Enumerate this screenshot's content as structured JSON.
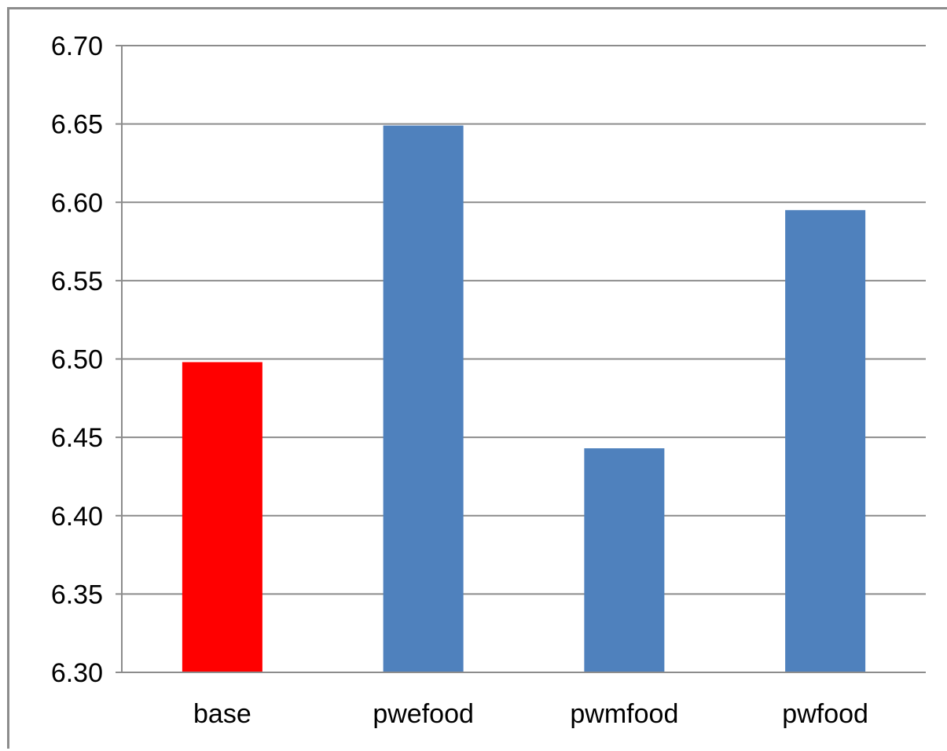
{
  "chart_data": {
    "type": "bar",
    "title": "",
    "xlabel": "",
    "ylabel": "",
    "categories": [
      "base",
      "pwefood",
      "pwmfood",
      "pwfood"
    ],
    "values": [
      6.498,
      6.649,
      6.443,
      6.595
    ],
    "bar_colors": [
      "#ff0000",
      "#4f81bd",
      "#4f81bd",
      "#4f81bd"
    ],
    "ylim": [
      6.3,
      6.7
    ],
    "yticks": [
      "6.30",
      "6.35",
      "6.40",
      "6.45",
      "6.50",
      "6.55",
      "6.60",
      "6.65",
      "6.70"
    ],
    "grid": true,
    "legend": "none",
    "gridline_color": "#8c8c8c",
    "frame_color": "#8c8c8c"
  }
}
